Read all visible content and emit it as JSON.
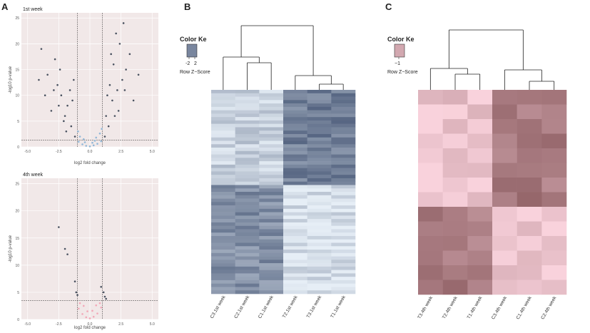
{
  "panel_labels": {
    "a": "A",
    "b": "B",
    "c": "C"
  },
  "chart_data": [
    {
      "type": "scatter",
      "panel": "A",
      "title": "1st week",
      "xlabel": "log2 fold change",
      "ylabel": "-log10 p-value",
      "xlim": [
        -5.5,
        5.5
      ],
      "ylim": [
        0,
        26
      ],
      "x_ticks": [
        "-5.0",
        "-2.5",
        "0.0",
        "2.5",
        "5.0"
      ],
      "x_tick_values": [
        -5,
        -2.5,
        0,
        2.5,
        5
      ],
      "y_ticks": [
        "0",
        "5",
        "10",
        "15",
        "20",
        "25"
      ],
      "y_tick_values": [
        0,
        5,
        10,
        15,
        20,
        25
      ],
      "hline": 1.3,
      "vlines": [
        -1,
        1
      ],
      "grid": true,
      "colors": {
        "significant": "#4a5260",
        "nonsignificant": "#92b8d8",
        "panel_bg": "#f1e8e8",
        "grid": "#ffffff"
      },
      "significant_points": [
        [
          -1.2,
          2
        ],
        [
          -1.5,
          4
        ],
        [
          -2,
          6
        ],
        [
          -1.8,
          8
        ],
        [
          -2.3,
          10
        ],
        [
          -2.6,
          12
        ],
        [
          -1.4,
          9
        ],
        [
          -2.9,
          11
        ],
        [
          -3.4,
          14
        ],
        [
          -3.9,
          19
        ],
        [
          -2.4,
          15
        ],
        [
          -1.6,
          11
        ],
        [
          -2.1,
          5
        ],
        [
          -3.1,
          7
        ],
        [
          -1.3,
          13
        ],
        [
          -2.8,
          17
        ],
        [
          -1.9,
          3
        ],
        [
          -2.5,
          8
        ],
        [
          -3.6,
          10
        ],
        [
          -4.1,
          13
        ],
        [
          1.2,
          2
        ],
        [
          1.5,
          4
        ],
        [
          2,
          6
        ],
        [
          1.8,
          9
        ],
        [
          2.2,
          11
        ],
        [
          2.6,
          13
        ],
        [
          1.4,
          10
        ],
        [
          2.9,
          15
        ],
        [
          3.2,
          18
        ],
        [
          2.4,
          20
        ],
        [
          1.9,
          16
        ],
        [
          2.1,
          22
        ],
        [
          2.7,
          24
        ],
        [
          1.6,
          12
        ],
        [
          3.5,
          9
        ],
        [
          1.3,
          6
        ],
        [
          2.3,
          7
        ],
        [
          2.8,
          11
        ],
        [
          3.9,
          14
        ],
        [
          1.7,
          18
        ]
      ],
      "nonsignificant_points": [
        [
          -0.9,
          1
        ],
        [
          -0.6,
          0.5
        ],
        [
          -0.3,
          0.2
        ],
        [
          0,
          0.1
        ],
        [
          0.3,
          0.3
        ],
        [
          0.6,
          0.6
        ],
        [
          0.9,
          1.1
        ],
        [
          -0.8,
          2
        ],
        [
          -0.5,
          1.5
        ],
        [
          0.2,
          0.8
        ],
        [
          0.5,
          1.8
        ],
        [
          0.8,
          2.6
        ],
        [
          -0.95,
          3
        ],
        [
          0.95,
          3.5
        ],
        [
          -0.4,
          0.9
        ],
        [
          0.4,
          1.2
        ]
      ]
    },
    {
      "type": "scatter",
      "panel": "A",
      "title": "4th week",
      "xlabel": "log2 fold change",
      "ylabel": "-log10 p-value",
      "xlim": [
        -5.5,
        5.5
      ],
      "ylim": [
        0,
        26
      ],
      "x_ticks": [
        "-5.0",
        "-2.5",
        "0.0",
        "2.5",
        "5.0"
      ],
      "x_tick_values": [
        -5,
        -2.5,
        0,
        2.5,
        5
      ],
      "y_ticks": [
        "0",
        "5",
        "10",
        "15",
        "20",
        "25"
      ],
      "y_tick_values": [
        0,
        5,
        10,
        15,
        20,
        25
      ],
      "hline": 3.5,
      "vlines": [
        -1,
        1
      ],
      "grid": true,
      "colors": {
        "significant": "#4a5260",
        "nonsignificant": "#f2a8b8",
        "panel_bg": "#f1e8e8",
        "grid": "#ffffff"
      },
      "significant_points": [
        [
          -2.5,
          17
        ],
        [
          -2,
          13
        ],
        [
          -1.8,
          12
        ],
        [
          -1.2,
          7
        ],
        [
          -1.1,
          5
        ],
        [
          -1,
          4.5
        ],
        [
          1.1,
          5
        ],
        [
          1.2,
          4.2
        ],
        [
          1.3,
          3.8
        ],
        [
          0.9,
          6
        ]
      ],
      "nonsignificant_points": [
        [
          -0.9,
          2
        ],
        [
          -0.6,
          1
        ],
        [
          -0.3,
          0.4
        ],
        [
          0,
          0.2
        ],
        [
          0.3,
          0.5
        ],
        [
          0.6,
          1.1
        ],
        [
          0.9,
          2.2
        ],
        [
          -0.8,
          3
        ],
        [
          0.8,
          3
        ],
        [
          -0.2,
          1.5
        ],
        [
          0.2,
          1.6
        ],
        [
          -0.5,
          2.5
        ],
        [
          0.5,
          2.6
        ]
      ]
    },
    {
      "type": "heatmap",
      "panel": "B",
      "columns": [
        "C3.1st week",
        "C2.1st week",
        "C1.1st week",
        "T2.1st week",
        "T3.1st week",
        "T1.1st week"
      ],
      "column_groups": [
        [
          0,
          1,
          2
        ],
        [
          3,
          4,
          5
        ]
      ],
      "color_key": {
        "title": "Color Ke",
        "ticks": [
          "-2",
          "2"
        ],
        "label": "Row Z−Score",
        "low": "#e6eef6",
        "high": "#4a5a78"
      },
      "row_count": 60,
      "block_split_row": 28,
      "blocks": {
        "top": {
          "group0": 0.2,
          "group1": 0.75
        },
        "bottom": {
          "group0": 0.65,
          "group1": 0.1
        }
      },
      "col_dendrogram": "((C3,(C2,C1)),(T2,(T3,T1)))"
    },
    {
      "type": "heatmap",
      "panel": "C",
      "columns": [
        "T3.4th week",
        "T2.4th week",
        "T1.4th week",
        "C3.4th week",
        "C1.4th week",
        "C2.4th week"
      ],
      "column_groups": [
        [
          0,
          1,
          2
        ],
        [
          3,
          4,
          5
        ]
      ],
      "color_key": {
        "title": "Color Ke",
        "ticks": [
          "−1"
        ],
        "label": "Row Z−Score",
        "low": "#f9d2dc",
        "high": "#8a5a5e"
      },
      "row_count": 14,
      "block_split_row": 8,
      "blocks": {
        "top": {
          "group0": 0.12,
          "group1": 0.72
        },
        "bottom": {
          "group0": 0.7,
          "group1": 0.1
        }
      },
      "col_dendrogram": "((T3,(T2,T1)),(C3,(C1,C2)))"
    }
  ]
}
